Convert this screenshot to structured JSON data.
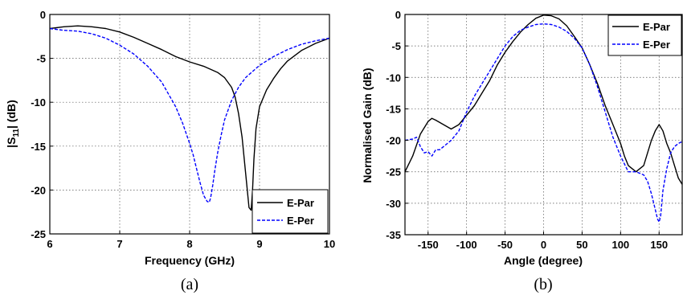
{
  "chart_data": [
    {
      "type": "line",
      "caption": "(a)",
      "xlabel": "Frequency (GHz)",
      "ylabel_main": "|S",
      "ylabel_sub": "11",
      "ylabel_end": "| (dB)",
      "xlim": [
        6,
        10
      ],
      "ylim": [
        -25,
        0
      ],
      "xticks": [
        6,
        7,
        8,
        9,
        10
      ],
      "yticks": [
        0,
        -5,
        -10,
        -15,
        -20,
        -25
      ],
      "grid": true,
      "legend_position": "bottom-right",
      "series": [
        {
          "name": "E-Par",
          "color": "#000000",
          "dash": "solid",
          "x": [
            6.0,
            6.2,
            6.4,
            6.6,
            6.8,
            7.0,
            7.2,
            7.4,
            7.6,
            7.8,
            8.0,
            8.2,
            8.4,
            8.5,
            8.6,
            8.65,
            8.7,
            8.75,
            8.8,
            8.85,
            8.88,
            8.9,
            8.92,
            8.95,
            9.0,
            9.1,
            9.2,
            9.3,
            9.4,
            9.6,
            9.8,
            10.0
          ],
          "y": [
            -1.6,
            -1.4,
            -1.3,
            -1.4,
            -1.6,
            -2.0,
            -2.6,
            -3.3,
            -4.0,
            -4.8,
            -5.4,
            -5.9,
            -6.6,
            -7.2,
            -8.3,
            -9.4,
            -11.3,
            -14.0,
            -18.0,
            -22.0,
            -22.3,
            -20.0,
            -16.5,
            -13.0,
            -10.5,
            -8.6,
            -7.3,
            -6.2,
            -5.3,
            -4.1,
            -3.3,
            -2.7
          ]
        },
        {
          "name": "E-Per",
          "color": "#0000ff",
          "dash": "dashed",
          "x": [
            6.0,
            6.2,
            6.4,
            6.6,
            6.8,
            7.0,
            7.2,
            7.4,
            7.6,
            7.8,
            7.9,
            8.0,
            8.05,
            8.1,
            8.15,
            8.2,
            8.25,
            8.28,
            8.3,
            8.33,
            8.36,
            8.4,
            8.45,
            8.5,
            8.6,
            8.7,
            8.8,
            9.0,
            9.2,
            9.4,
            9.6,
            9.8,
            10.0
          ],
          "y": [
            -1.6,
            -1.8,
            -1.9,
            -2.2,
            -2.7,
            -3.5,
            -4.5,
            -5.9,
            -7.7,
            -10.5,
            -12.4,
            -14.7,
            -16.0,
            -17.6,
            -19.2,
            -20.6,
            -21.3,
            -21.4,
            -20.9,
            -19.5,
            -17.8,
            -15.8,
            -13.8,
            -12.0,
            -9.8,
            -8.3,
            -7.2,
            -5.8,
            -4.8,
            -4.0,
            -3.4,
            -3.0,
            -2.7
          ]
        }
      ]
    },
    {
      "type": "line",
      "caption": "(b)",
      "xlabel": "Angle (degree)",
      "ylabel": "Normalised Gain (dB)",
      "xlim": [
        -180,
        180
      ],
      "ylim": [
        -35,
        0
      ],
      "xticks": [
        -150,
        -100,
        -50,
        0,
        50,
        100,
        150
      ],
      "yticks": [
        0,
        -5,
        -10,
        -15,
        -20,
        -25,
        -30,
        -35
      ],
      "grid": true,
      "legend_position": "top-right",
      "series": [
        {
          "name": "E-Par",
          "color": "#000000",
          "dash": "solid",
          "x": [
            -180,
            -170,
            -160,
            -150,
            -145,
            -140,
            -130,
            -120,
            -110,
            -100,
            -90,
            -80,
            -70,
            -60,
            -50,
            -40,
            -30,
            -20,
            -10,
            0,
            10,
            20,
            30,
            40,
            50,
            60,
            70,
            80,
            90,
            100,
            105,
            110,
            115,
            120,
            125,
            130,
            135,
            140,
            145,
            150,
            155,
            160,
            165,
            170,
            175,
            180
          ],
          "y": [
            -25.0,
            -22.5,
            -19.0,
            -17.0,
            -16.5,
            -16.8,
            -17.5,
            -18.2,
            -17.5,
            -16.0,
            -14.5,
            -12.5,
            -10.5,
            -8.0,
            -6.0,
            -4.3,
            -2.8,
            -1.6,
            -0.6,
            -0.1,
            -0.2,
            -0.7,
            -1.8,
            -3.5,
            -5.3,
            -8.0,
            -11.0,
            -14.5,
            -17.5,
            -20.5,
            -22.5,
            -24.0,
            -24.5,
            -25.0,
            -24.5,
            -24.0,
            -22.0,
            -20.0,
            -18.5,
            -17.5,
            -18.5,
            -20.5,
            -22.0,
            -24.0,
            -26.0,
            -27.0
          ]
        },
        {
          "name": "E-Per",
          "color": "#0000ff",
          "dash": "dashed",
          "x": [
            -180,
            -170,
            -165,
            -160,
            -155,
            -150,
            -145,
            -140,
            -135,
            -130,
            -120,
            -110,
            -100,
            -90,
            -80,
            -70,
            -60,
            -50,
            -40,
            -30,
            -20,
            -10,
            0,
            10,
            20,
            30,
            40,
            50,
            60,
            70,
            80,
            90,
            100,
            110,
            120,
            130,
            135,
            140,
            145,
            148,
            150,
            152,
            155,
            160,
            165,
            170,
            175,
            180
          ],
          "y": [
            -20.0,
            -19.8,
            -19.5,
            -21.0,
            -22.0,
            -21.8,
            -22.5,
            -21.5,
            -21.5,
            -21.0,
            -20.0,
            -18.5,
            -15.5,
            -13.0,
            -11.0,
            -9.0,
            -7.0,
            -5.0,
            -3.5,
            -2.5,
            -2.0,
            -1.6,
            -1.5,
            -1.6,
            -2.0,
            -2.7,
            -3.8,
            -5.3,
            -8.0,
            -11.5,
            -15.5,
            -19.5,
            -22.5,
            -25.0,
            -25.0,
            -25.5,
            -26.5,
            -28.5,
            -31.0,
            -32.5,
            -33.0,
            -32.0,
            -28.0,
            -24.5,
            -22.0,
            -21.0,
            -20.5,
            -20.2
          ]
        }
      ]
    }
  ]
}
